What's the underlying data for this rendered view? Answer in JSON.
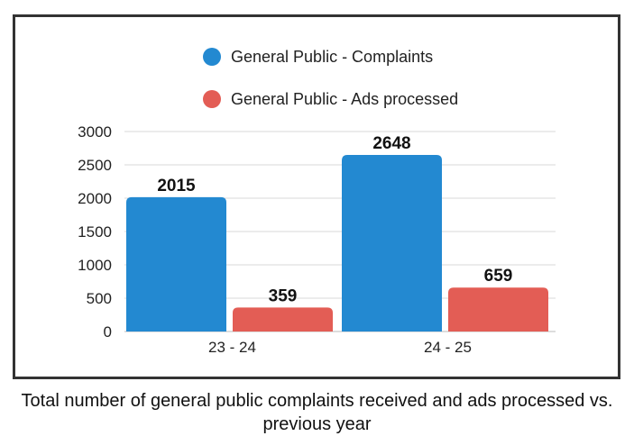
{
  "colors": {
    "complaints": "#2389d1",
    "ads": "#e35d55",
    "grid": "#d9d9d9",
    "axis": "#bbbbbb"
  },
  "caption": "Total number of general public complaints received and ads processed vs. previous year",
  "chart_data": {
    "type": "bar",
    "categories": [
      "23 - 24",
      "24 - 25"
    ],
    "series": [
      {
        "name": "General Public - Complaints",
        "values": [
          2015,
          2648
        ]
      },
      {
        "name": "General Public - Ads processed",
        "values": [
          359,
          659
        ]
      }
    ],
    "yticks": [
      "0",
      "500",
      "1000",
      "1500",
      "2000",
      "2500",
      "3000"
    ],
    "ylim": [
      0,
      3000
    ],
    "legend_position": "top-center",
    "grid": true
  }
}
